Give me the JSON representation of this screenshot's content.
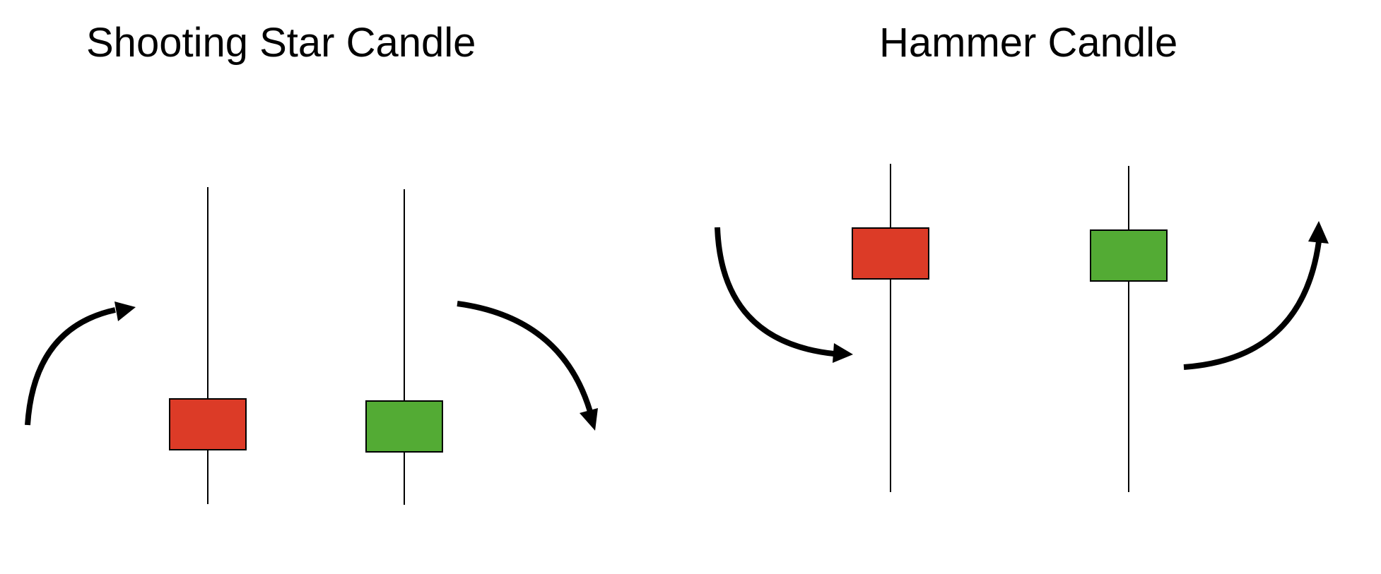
{
  "panels": [
    {
      "title": "Shooting Star Candle",
      "candles": [
        {
          "color": "red"
        },
        {
          "color": "green"
        }
      ],
      "arrows": [
        {
          "direction": "up-right"
        },
        {
          "direction": "down-right"
        }
      ]
    },
    {
      "title": "Hammer Candle",
      "candles": [
        {
          "color": "red"
        },
        {
          "color": "green"
        }
      ],
      "arrows": [
        {
          "direction": "down-right"
        },
        {
          "direction": "up-right"
        }
      ]
    }
  ],
  "colors": {
    "red": "#dc3b27",
    "green": "#53ab34",
    "line": "#000000",
    "background": "#ffffff"
  },
  "icons": {
    "arrow": "curved-arrow-icon"
  }
}
